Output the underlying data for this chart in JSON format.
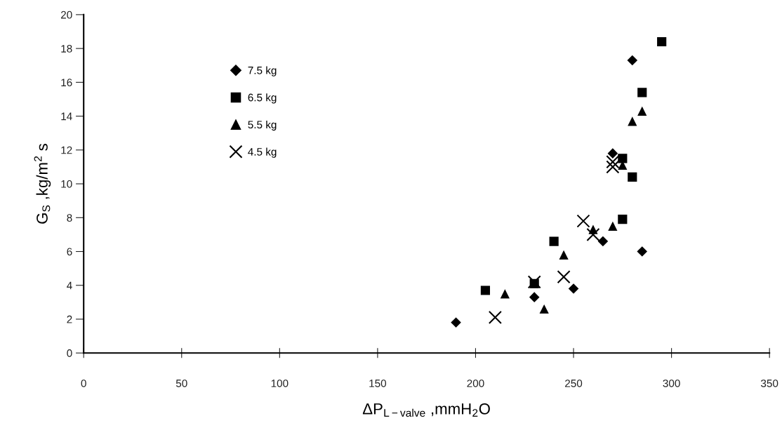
{
  "chart_data": {
    "type": "scatter",
    "xlabel": "ΔP$_{L−valve}$ ,mmH$_{2}$O",
    "ylabel": "G$_{S}$ ,kg/m$^{2}$ s",
    "xlim": [
      0,
      350
    ],
    "xticks": [
      0,
      50,
      100,
      150,
      200,
      250,
      300,
      350
    ],
    "ylim": [
      0,
      20
    ],
    "yticks": [
      0,
      2,
      4,
      6,
      8,
      10,
      12,
      14,
      16,
      18,
      20
    ],
    "grid": false,
    "legend": "top left",
    "series": [
      {
        "name": "7.5 kg",
        "color": "#000000",
        "marker": "diamond",
        "x": [
          190,
          230,
          250,
          265,
          270,
          280,
          285
        ],
        "values": [
          1.8,
          3.3,
          3.8,
          6.6,
          11.8,
          17.3,
          6.0
        ]
      },
      {
        "name": "6.5 kg",
        "color": "#000000",
        "marker": "square",
        "x": [
          205,
          230,
          240,
          275,
          275,
          280,
          285,
          295
        ],
        "values": [
          3.7,
          4.1,
          6.6,
          7.9,
          11.5,
          10.4,
          15.4,
          18.4
        ]
      },
      {
        "name": "5.5 kg",
        "color": "#000000",
        "marker": "triangle",
        "x": [
          215,
          235,
          245,
          260,
          270,
          275,
          280,
          285
        ],
        "values": [
          3.5,
          2.6,
          5.8,
          7.3,
          7.5,
          11.1,
          13.7,
          14.3
        ]
      },
      {
        "name": "4.5 kg",
        "color": "#000000",
        "marker": "cross",
        "x": [
          210,
          230,
          245,
          255,
          260,
          270,
          270
        ],
        "values": [
          2.1,
          4.2,
          4.5,
          7.8,
          7.0,
          11.0,
          11.3
        ]
      }
    ]
  }
}
